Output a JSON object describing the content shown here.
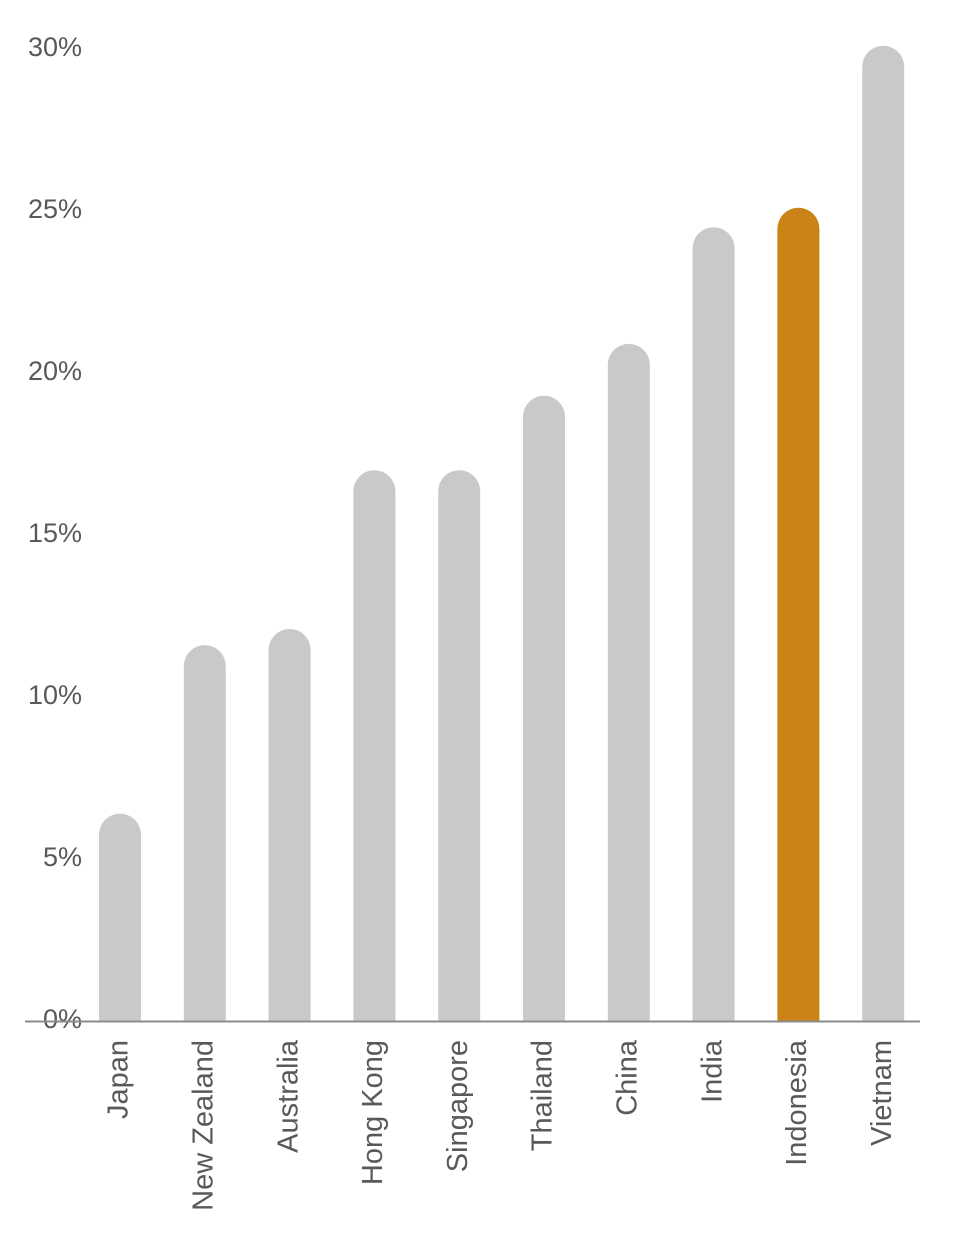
{
  "chart_data": {
    "type": "bar",
    "title": "",
    "xlabel": "",
    "ylabel": "",
    "categories": [
      "Japan",
      "New Zealand",
      "Australia",
      "Hong Kong",
      "Singapore",
      "Thailand",
      "China",
      "India",
      "Indonesia",
      "Vietnam"
    ],
    "values": [
      6.4,
      11.6,
      12.1,
      17.0,
      17.0,
      19.3,
      20.9,
      24.5,
      25.1,
      30.1
    ],
    "ylim": [
      0,
      30
    ],
    "yticks": [
      0,
      5,
      10,
      15,
      20,
      25,
      30
    ],
    "ytick_labels": [
      "0%",
      "5%",
      "10%",
      "15%",
      "20%",
      "25%",
      "30%"
    ],
    "highlight": "Indonesia",
    "grid": false,
    "legend": "none",
    "colors": {
      "bar": "#c8c9cb",
      "highlight": "#c98317",
      "axis": "#8c8c8c",
      "text": "#595959"
    }
  }
}
